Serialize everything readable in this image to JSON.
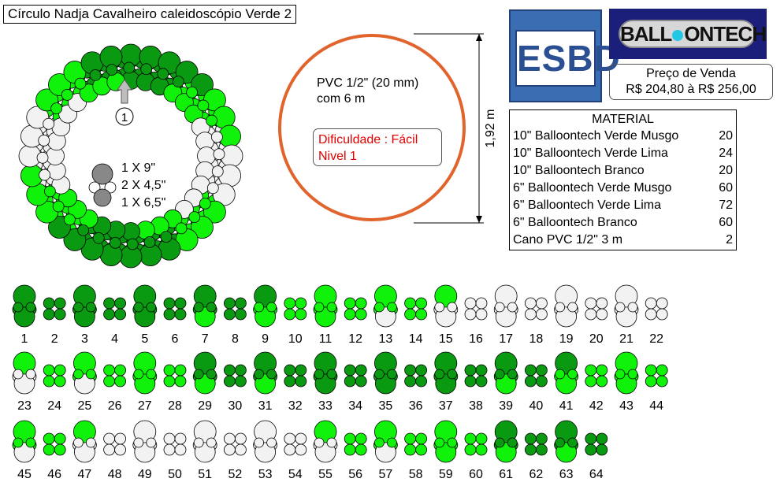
{
  "title": "Círculo Nadja Cavalheiro caleidoscópio Verde 2",
  "colors": {
    "musgo": "#0a9a12",
    "lima": "#11f20b",
    "branco": "#f2f2f2",
    "frame": "#e0642c",
    "gray": "#888888"
  },
  "pvc": {
    "line1": "PVC 1/2\" (20 mm)",
    "line2": "com 6 m"
  },
  "difficulty": {
    "line1": "Dificuldade : Fácil",
    "line2": "Nivel 1"
  },
  "height_label": "1,92 m",
  "logo_esbd": "ESBD",
  "logo_balloontech": {
    "part1": "BALL",
    "part2": "ONTECH"
  },
  "price": {
    "label": "Preço de Venda",
    "value": "R$ 204,80 à R$ 256,00"
  },
  "material": {
    "title": "MATERIAL",
    "items": [
      {
        "name": "10\" Balloontech Verde Musgo",
        "qty": "20"
      },
      {
        "name": "10\" Balloontech Verde Lima",
        "qty": "24"
      },
      {
        "name": "10\" Balloontech Branco",
        "qty": "20"
      },
      {
        "name": "6\" Balloontech Verde Musgo",
        "qty": "60"
      },
      {
        "name": "6\" Balloontech Verde Lima",
        "qty": "72"
      },
      {
        "name": "6\" Balloontech Branco",
        "qty": "60"
      },
      {
        "name": "Cano PVC 1/2\" 3 m",
        "qty": "2"
      }
    ]
  },
  "tip": {
    "l1": "1 X 9\"",
    "l2": "2 X 4,5\"",
    "l3": "1 X 6,5\""
  },
  "start_marker": "1",
  "sequence": [
    {
      "n": "1",
      "top": "M",
      "bottom": "M",
      "small": "M"
    },
    {
      "n": "2",
      "small": "M"
    },
    {
      "n": "3",
      "top": "M",
      "bottom": "M",
      "small": "M"
    },
    {
      "n": "4",
      "small": "M"
    },
    {
      "n": "5",
      "top": "M",
      "bottom": "M",
      "small": "M"
    },
    {
      "n": "6",
      "small": "M"
    },
    {
      "n": "7",
      "top": "M",
      "bottom": "L",
      "small": "M"
    },
    {
      "n": "8",
      "small": "M"
    },
    {
      "n": "9",
      "top": "M",
      "bottom": "L",
      "small": "L"
    },
    {
      "n": "10",
      "small": "L"
    },
    {
      "n": "11",
      "top": "L",
      "bottom": "L",
      "small": "L"
    },
    {
      "n": "12",
      "small": "L"
    },
    {
      "n": "13",
      "top": "L",
      "bottom": "W",
      "small": "L"
    },
    {
      "n": "14",
      "small": "L"
    },
    {
      "n": "15",
      "top": "L",
      "bottom": "W",
      "small": "W"
    },
    {
      "n": "16",
      "small": "W"
    },
    {
      "n": "17",
      "top": "W",
      "bottom": "W",
      "small": "W"
    },
    {
      "n": "18",
      "small": "W"
    },
    {
      "n": "19",
      "top": "W",
      "bottom": "W",
      "small": "W"
    },
    {
      "n": "20",
      "small": "W"
    },
    {
      "n": "21",
      "top": "W",
      "bottom": "W",
      "small": "W"
    },
    {
      "n": "22",
      "small": "W"
    },
    {
      "n": "23",
      "top": "L",
      "bottom": "W",
      "small": "W"
    },
    {
      "n": "24",
      "small": "L"
    },
    {
      "n": "25",
      "top": "L",
      "bottom": "W",
      "small": "L"
    },
    {
      "n": "26",
      "small": "L"
    },
    {
      "n": "27",
      "top": "L",
      "bottom": "L",
      "small": "L"
    },
    {
      "n": "28",
      "small": "L"
    },
    {
      "n": "29",
      "top": "M",
      "bottom": "L",
      "small": "M"
    },
    {
      "n": "30",
      "small": "M"
    },
    {
      "n": "31",
      "top": "M",
      "bottom": "L",
      "small": "M"
    },
    {
      "n": "32",
      "small": "M"
    },
    {
      "n": "33",
      "top": "M",
      "bottom": "M",
      "small": "M"
    },
    {
      "n": "34",
      "small": "M"
    },
    {
      "n": "35",
      "top": "M",
      "bottom": "M",
      "small": "M"
    },
    {
      "n": "36",
      "small": "M"
    },
    {
      "n": "37",
      "top": "M",
      "bottom": "M",
      "small": "M"
    },
    {
      "n": "38",
      "small": "M"
    },
    {
      "n": "39",
      "top": "M",
      "bottom": "L",
      "small": "M"
    },
    {
      "n": "40",
      "small": "M"
    },
    {
      "n": "41",
      "top": "M",
      "bottom": "L",
      "small": "L"
    },
    {
      "n": "42",
      "small": "L"
    },
    {
      "n": "43",
      "top": "L",
      "bottom": "L",
      "small": "L"
    },
    {
      "n": "44",
      "small": "L"
    },
    {
      "n": "45",
      "top": "L",
      "bottom": "W",
      "small": "L"
    },
    {
      "n": "46",
      "small": "L"
    },
    {
      "n": "47",
      "top": "L",
      "bottom": "W",
      "small": "W"
    },
    {
      "n": "48",
      "small": "W"
    },
    {
      "n": "49",
      "top": "W",
      "bottom": "W",
      "small": "W"
    },
    {
      "n": "50",
      "small": "W"
    },
    {
      "n": "51",
      "top": "W",
      "bottom": "W",
      "small": "W"
    },
    {
      "n": "52",
      "small": "W"
    },
    {
      "n": "53",
      "top": "W",
      "bottom": "W",
      "small": "W"
    },
    {
      "n": "54",
      "small": "W"
    },
    {
      "n": "55",
      "top": "L",
      "bottom": "W",
      "small": "W"
    },
    {
      "n": "56",
      "small": "L"
    },
    {
      "n": "57",
      "top": "L",
      "bottom": "W",
      "small": "L"
    },
    {
      "n": "58",
      "small": "L"
    },
    {
      "n": "59",
      "top": "L",
      "bottom": "L",
      "small": "L"
    },
    {
      "n": "60",
      "small": "L"
    },
    {
      "n": "61",
      "top": "M",
      "bottom": "L",
      "small": "M"
    },
    {
      "n": "62",
      "small": "M"
    },
    {
      "n": "63",
      "top": "M",
      "bottom": "L",
      "small": "M"
    },
    {
      "n": "64",
      "small": "M"
    }
  ]
}
